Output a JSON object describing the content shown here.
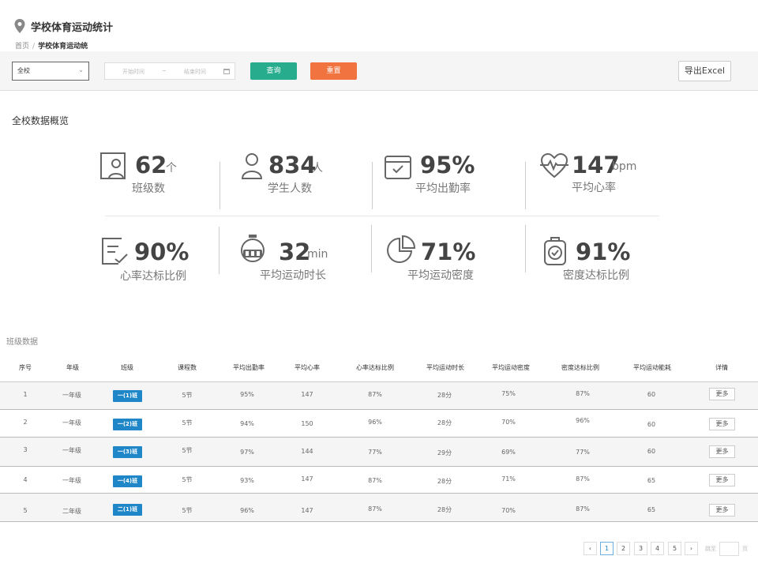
{
  "header": {
    "title": "学校体育运动统计",
    "breadcrumb": {
      "home": "首页",
      "separator": "/",
      "current": "学校体育运动统"
    }
  },
  "toolbar": {
    "scope_value": "全校",
    "date_start_placeholder": "开始时间",
    "date_separator": "~",
    "date_end_placeholder": "结束时间",
    "query_label": "查询",
    "reset_label": "重置",
    "export_label": "导出Excel",
    "colors": {
      "query": "#27ad8e",
      "reset": "#f07340"
    }
  },
  "overview": {
    "title": "全校数据概览",
    "stats": [
      {
        "value": "62",
        "unit": "个",
        "label": "班级数",
        "icon": "class-board-icon"
      },
      {
        "value": "834",
        "unit": "人",
        "label": "学生人数",
        "icon": "student-icon"
      },
      {
        "value": "95%",
        "unit": "",
        "label": "平均出勤率",
        "icon": "attendance-calendar-icon"
      },
      {
        "value": "147",
        "unit": "bpm",
        "label": "平均心率",
        "icon": "heart-rate-icon"
      },
      {
        "value": "90%",
        "unit": "",
        "label": "心率达标比例",
        "icon": "checklist-icon"
      },
      {
        "value": "32",
        "unit": "min",
        "label": "平均运动时长",
        "icon": "stopwatch-icon"
      },
      {
        "value": "71%",
        "unit": "",
        "label": "平均运动密度",
        "icon": "pie-chart-icon"
      },
      {
        "value": "91%",
        "unit": "",
        "label": "密度达标比例",
        "icon": "watch-check-icon"
      }
    ]
  },
  "table": {
    "caption": "班级数据",
    "columns": [
      "序号",
      "年级",
      "班级",
      "课程数",
      "平均出勤率",
      "平均心率",
      "心率达标比例",
      "平均运动时长",
      "平均运动密度",
      "密度达标比例",
      "平均运动能耗",
      "详情"
    ],
    "more_label": "更多",
    "class_tag_color": "#1f86c8",
    "rows": [
      {
        "index": "1",
        "grade": "一年级",
        "class": "一(1)班",
        "lessons": "5节",
        "attendance": "95%",
        "heart_rate": "147",
        "hr_ratio": "87%",
        "duration": "28分",
        "density": "75%",
        "density_ratio": "87%",
        "energy": "60"
      },
      {
        "index": "2",
        "grade": "一年级",
        "class": "一(2)班",
        "lessons": "5节",
        "attendance": "94%",
        "heart_rate": "150",
        "hr_ratio": "96%",
        "duration": "28分",
        "density": "70%",
        "density_ratio": "96%",
        "energy": "60"
      },
      {
        "index": "3",
        "grade": "一年级",
        "class": "一(3)班",
        "lessons": "5节",
        "attendance": "97%",
        "heart_rate": "144",
        "hr_ratio": "77%",
        "duration": "29分",
        "density": "69%",
        "density_ratio": "77%",
        "energy": "60"
      },
      {
        "index": "4",
        "grade": "一年级",
        "class": "一(4)班",
        "lessons": "5节",
        "attendance": "93%",
        "heart_rate": "147",
        "hr_ratio": "87%",
        "duration": "28分",
        "density": "71%",
        "density_ratio": "87%",
        "energy": "65"
      },
      {
        "index": "5",
        "grade": "二年级",
        "class": "二(1)班",
        "lessons": "5节",
        "attendance": "96%",
        "heart_rate": "147",
        "hr_ratio": "87%",
        "duration": "28分",
        "density": "70%",
        "density_ratio": "87%",
        "energy": "65"
      }
    ]
  },
  "pagination": {
    "prev": "‹",
    "next": "›",
    "pages": [
      "1",
      "2",
      "3",
      "4",
      "5"
    ],
    "current": "1",
    "jump_prefix": "跳至",
    "jump_suffix": "页"
  }
}
